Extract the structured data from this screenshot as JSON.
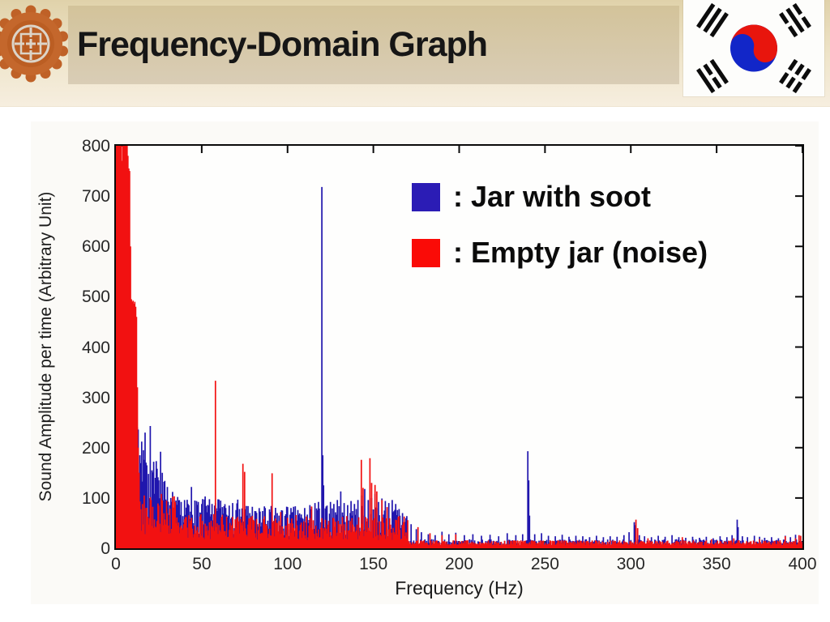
{
  "header": {
    "title": "Frequency-Domain Graph",
    "ornament_icon": "korean-medallion-icon",
    "flag_icon": "south-korea-flag-icon",
    "colors": {
      "band_top": "#e0d2aa",
      "band_bottom": "#f6eedf",
      "title_box": "#d6c7a3",
      "title_text": "#161616"
    }
  },
  "legend": {
    "items": [
      {
        "label": ": Jar with soot",
        "swatch_color": "#2b1cb5"
      },
      {
        "label": ": Empty jar (noise)",
        "swatch_color": "#fa0b07"
      }
    ]
  },
  "chart_data": {
    "type": "line",
    "subtype": "frequency-spectrum",
    "title": "",
    "xlabel": "Frequency (Hz)",
    "ylabel": "Sound Amplitude per time (Arbitrary Unit)",
    "xlim": [
      0,
      400
    ],
    "ylim": [
      0,
      800
    ],
    "xticks": [
      0,
      50,
      100,
      150,
      200,
      250,
      300,
      350,
      400
    ],
    "yticks": [
      0,
      100,
      200,
      300,
      400,
      500,
      600,
      700,
      800
    ],
    "grid": false,
    "legend_position": "inside-top-right",
    "noise_seed": 7,
    "draw_order": [
      0,
      1
    ],
    "series": [
      {
        "name": "Jar with soot",
        "color": "#2016ad",
        "peaks": [
          [
            9,
            455
          ],
          [
            9.5,
            430
          ],
          [
            10,
            460
          ],
          [
            10.5,
            445
          ],
          [
            11,
            425
          ],
          [
            11.5,
            380
          ],
          [
            12,
            310
          ],
          [
            12.5,
            240
          ],
          [
            13,
            236
          ],
          [
            14,
            185
          ],
          [
            15,
            212
          ],
          [
            16,
            195
          ],
          [
            17,
            230
          ],
          [
            18,
            165
          ],
          [
            19,
            148
          ],
          [
            20,
            243
          ],
          [
            21,
            155
          ],
          [
            22,
            172
          ],
          [
            23,
            140
          ],
          [
            24,
            158
          ],
          [
            25,
            135
          ],
          [
            26,
            192
          ],
          [
            27,
            150
          ],
          [
            28,
            132
          ],
          [
            30,
            122
          ],
          [
            32,
            100
          ],
          [
            33,
            112
          ],
          [
            35,
            95
          ],
          [
            36,
            102
          ],
          [
            38,
            92
          ],
          [
            40,
            96
          ],
          [
            42,
            88
          ],
          [
            44,
            122
          ],
          [
            46,
            95
          ],
          [
            48,
            92
          ],
          [
            50,
            88
          ],
          [
            52,
            103
          ],
          [
            54,
            85
          ],
          [
            56,
            88
          ],
          [
            58,
            90
          ],
          [
            60,
            97
          ],
          [
            62,
            82
          ],
          [
            64,
            80
          ],
          [
            66,
            85
          ],
          [
            68,
            90
          ],
          [
            70,
            76
          ],
          [
            72,
            78
          ],
          [
            75,
            72
          ],
          [
            78,
            70
          ],
          [
            81,
            74
          ],
          [
            84,
            73
          ],
          [
            87,
            80
          ],
          [
            90,
            72
          ],
          [
            94,
            70
          ],
          [
            97,
            75
          ],
          [
            100,
            82
          ],
          [
            103,
            72
          ],
          [
            106,
            76
          ],
          [
            110,
            80
          ],
          [
            113,
            86
          ],
          [
            116,
            90
          ],
          [
            118,
            92
          ],
          [
            120,
            718
          ],
          [
            120.5,
            185
          ],
          [
            121,
            125
          ],
          [
            123,
            85
          ],
          [
            125,
            92
          ],
          [
            127,
            88
          ],
          [
            129,
            96
          ],
          [
            131,
            113
          ],
          [
            133,
            90
          ],
          [
            135,
            86
          ],
          [
            137,
            94
          ],
          [
            139,
            88
          ],
          [
            141,
            96
          ],
          [
            143,
            105
          ],
          [
            145,
            118
          ],
          [
            147,
            96
          ],
          [
            149,
            100
          ],
          [
            151,
            108
          ],
          [
            153,
            92
          ],
          [
            155,
            99
          ],
          [
            157,
            94
          ],
          [
            159,
            90
          ],
          [
            161,
            96
          ],
          [
            163,
            88
          ],
          [
            165,
            78
          ],
          [
            167,
            70
          ],
          [
            169,
            60
          ],
          [
            172,
            48
          ],
          [
            175,
            38
          ],
          [
            178,
            32
          ],
          [
            182,
            28
          ],
          [
            186,
            26
          ],
          [
            190,
            33
          ],
          [
            194,
            28
          ],
          [
            198,
            31
          ],
          [
            203,
            26
          ],
          [
            208,
            28
          ],
          [
            213,
            25
          ],
          [
            218,
            27
          ],
          [
            223,
            24
          ],
          [
            228,
            30
          ],
          [
            233,
            26
          ],
          [
            237,
            28
          ],
          [
            240,
            193
          ],
          [
            240.5,
            135
          ],
          [
            241,
            65
          ],
          [
            244,
            28
          ],
          [
            248,
            30
          ],
          [
            252,
            25
          ],
          [
            256,
            24
          ],
          [
            260,
            27
          ],
          [
            264,
            23
          ],
          [
            268,
            25
          ],
          [
            272,
            24
          ],
          [
            276,
            22
          ],
          [
            280,
            25
          ],
          [
            284,
            22
          ],
          [
            288,
            24
          ],
          [
            292,
            23
          ],
          [
            296,
            26
          ],
          [
            299,
            32
          ],
          [
            302,
            52
          ],
          [
            302.5,
            46
          ],
          [
            305,
            26
          ],
          [
            308,
            24
          ],
          [
            312,
            22
          ],
          [
            316,
            25
          ],
          [
            320,
            23
          ],
          [
            324,
            26
          ],
          [
            328,
            22
          ],
          [
            332,
            21
          ],
          [
            336,
            23
          ],
          [
            340,
            21
          ],
          [
            344,
            23
          ],
          [
            348,
            20
          ],
          [
            352,
            24
          ],
          [
            356,
            22
          ],
          [
            359,
            26
          ],
          [
            362,
            57
          ],
          [
            362.5,
            42
          ],
          [
            365,
            24
          ],
          [
            368,
            22
          ],
          [
            372,
            25
          ],
          [
            375,
            23
          ],
          [
            378,
            21
          ],
          [
            382,
            22
          ],
          [
            386,
            20
          ],
          [
            390,
            25
          ],
          [
            393,
            22
          ],
          [
            396,
            27
          ],
          [
            398,
            24
          ]
        ],
        "noise_bands": [
          [
            0,
            9,
            30,
            60
          ],
          [
            9,
            30,
            55,
            125
          ],
          [
            30,
            80,
            28,
            70
          ],
          [
            80,
            170,
            20,
            65
          ],
          [
            170,
            400,
            4,
            14
          ]
        ]
      },
      {
        "name": "Empty jar (noise)",
        "color": "#f21111",
        "peaks": [
          [
            0,
            800
          ],
          [
            0.5,
            800
          ],
          [
            1,
            800
          ],
          [
            1.5,
            800
          ],
          [
            2,
            800
          ],
          [
            2.5,
            800
          ],
          [
            3,
            800
          ],
          [
            3.5,
            770
          ],
          [
            4,
            800
          ],
          [
            4.5,
            800
          ],
          [
            5,
            800
          ],
          [
            5.5,
            800
          ],
          [
            6,
            800
          ],
          [
            6.5,
            800
          ],
          [
            7,
            780
          ],
          [
            7.5,
            755
          ],
          [
            8,
            750
          ],
          [
            8.5,
            600
          ],
          [
            9,
            495
          ],
          [
            9.5,
            490
          ],
          [
            10,
            492
          ],
          [
            10.5,
            486
          ],
          [
            11,
            490
          ],
          [
            11.5,
            480
          ],
          [
            12,
            460
          ],
          [
            12.5,
            320
          ],
          [
            13,
            200
          ],
          [
            13.5,
            150
          ],
          [
            58,
            333
          ],
          [
            74,
            168
          ],
          [
            75,
            152
          ],
          [
            91,
            149
          ],
          [
            96,
            72
          ],
          [
            105,
            66
          ],
          [
            114,
            83
          ],
          [
            120,
            60
          ],
          [
            143,
            176
          ],
          [
            144,
            120
          ],
          [
            148,
            179
          ],
          [
            149,
            130
          ],
          [
            151,
            126
          ],
          [
            152,
            113
          ],
          [
            155,
            96
          ],
          [
            158,
            82
          ],
          [
            165,
            64
          ],
          [
            170,
            56
          ],
          [
            176,
            42
          ],
          [
            183,
            30
          ],
          [
            190,
            26
          ],
          [
            198,
            28
          ],
          [
            303,
            57
          ],
          [
            304,
            40
          ],
          [
            310,
            20
          ],
          [
            330,
            22
          ],
          [
            347,
            18
          ],
          [
            360,
            20
          ],
          [
            375,
            18
          ],
          [
            390,
            24
          ],
          [
            396,
            20
          ],
          [
            398,
            26
          ],
          [
            399,
            25
          ]
        ],
        "noise_bands": [
          [
            0,
            13,
            350,
            300
          ],
          [
            13,
            35,
            28,
            80
          ],
          [
            35,
            80,
            18,
            50
          ],
          [
            80,
            170,
            16,
            48
          ],
          [
            170,
            400,
            6,
            10
          ]
        ]
      }
    ]
  }
}
